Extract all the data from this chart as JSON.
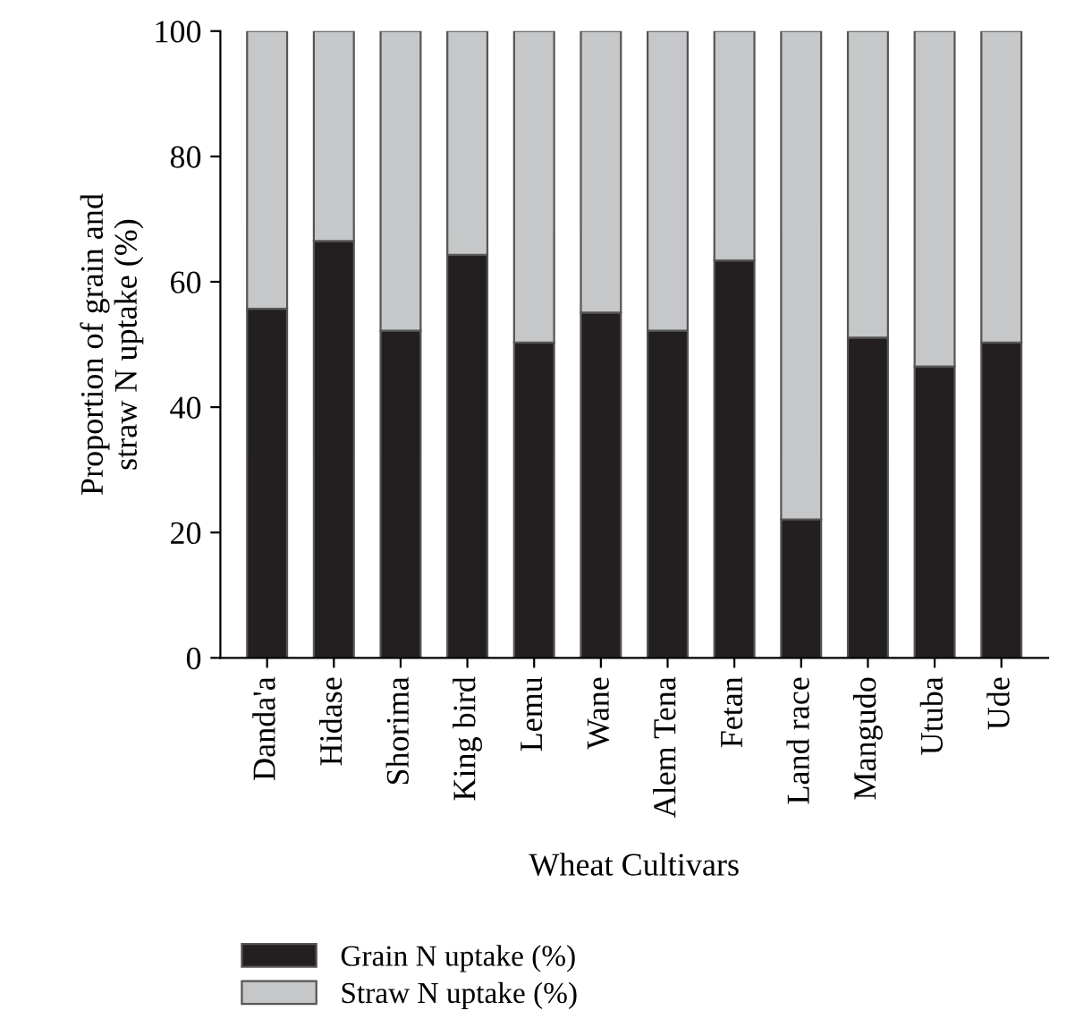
{
  "chart_data": {
    "type": "bar",
    "stacked": true,
    "xlabel": "Wheat Cultivars",
    "ylabel": "Proportion of grain and\nstraw N uptake (%)",
    "categories": [
      "Danda'a",
      "Hidase",
      "Shorima",
      "King bird",
      "Lemu",
      "Wane",
      "Alem Tena",
      "Fetan",
      "Land race",
      "Mangudo",
      "Utuba",
      "Ude"
    ],
    "series": [
      {
        "name": "Grain N uptake (%)",
        "color": "#231f20",
        "values": [
          55.7,
          66.5,
          52.2,
          64.3,
          50.3,
          55.1,
          52.2,
          63.4,
          22.1,
          51.1,
          46.5,
          50.3
        ]
      },
      {
        "name": "Straw N uptake (%)",
        "color": "#c6c7c8",
        "values": [
          44.3,
          33.5,
          47.8,
          35.7,
          49.7,
          44.9,
          47.8,
          36.6,
          77.9,
          48.9,
          53.5,
          49.7
        ]
      }
    ],
    "ylim": [
      0,
      100
    ],
    "yticks": [
      0,
      20,
      40,
      60,
      80,
      100
    ],
    "grid": false,
    "legend": "bottom"
  }
}
